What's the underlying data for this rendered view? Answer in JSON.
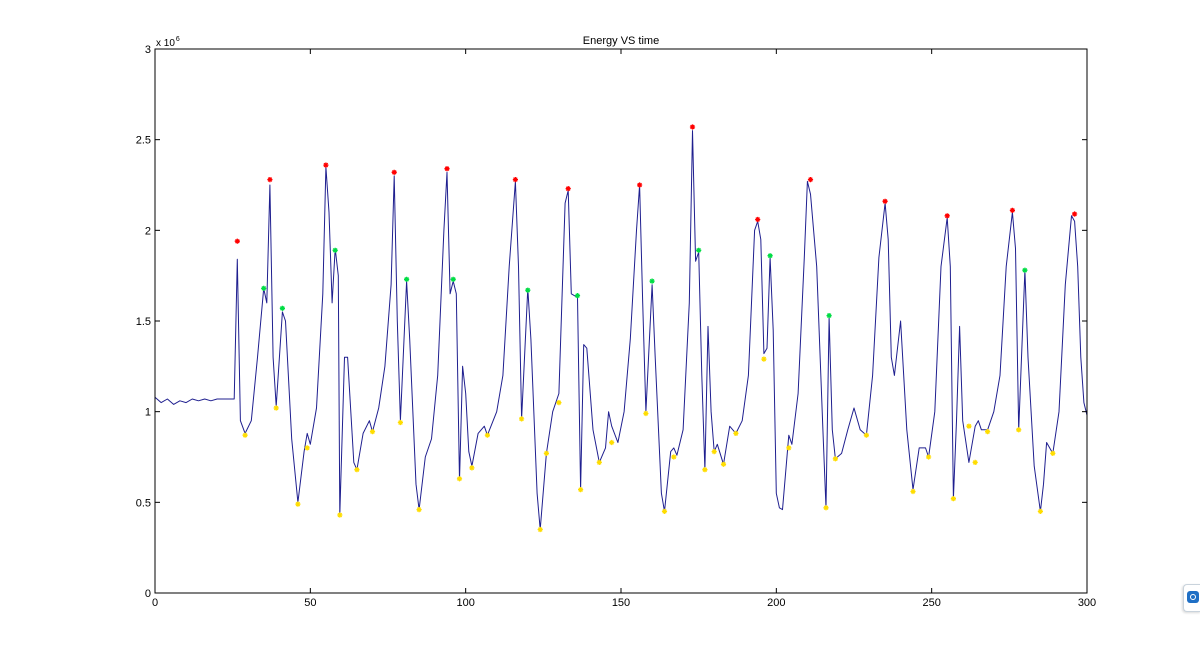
{
  "chart_data": {
    "type": "line",
    "title": "Energy VS time",
    "xlabel": "",
    "ylabel": "",
    "y_multiplier_base": "x 10",
    "y_multiplier_exp": "6",
    "xlim": [
      0,
      300
    ],
    "ylim": [
      0,
      3
    ],
    "x_ticks": [
      0,
      50,
      100,
      150,
      200,
      250,
      300
    ],
    "x_tick_labels": [
      "0",
      "50",
      "100",
      "150",
      "200",
      "250",
      "300"
    ],
    "y_ticks": [
      0,
      0.5,
      1,
      1.5,
      2,
      2.5,
      3
    ],
    "y_tick_labels": [
      "0",
      "0.5",
      "1",
      "1.5",
      "2",
      "2.5",
      "3"
    ],
    "grid": false,
    "legend": "none",
    "series": [
      {
        "role": "energy-signal",
        "color": "#1f1f8f",
        "points": [
          [
            0,
            1.08
          ],
          [
            2,
            1.05
          ],
          [
            4,
            1.07
          ],
          [
            6,
            1.04
          ],
          [
            8,
            1.06
          ],
          [
            10,
            1.05
          ],
          [
            12,
            1.07
          ],
          [
            14,
            1.06
          ],
          [
            16,
            1.07
          ],
          [
            18,
            1.06
          ],
          [
            20,
            1.07
          ],
          [
            22,
            1.07
          ],
          [
            24,
            1.07
          ],
          [
            25.5,
            1.07
          ],
          [
            26.5,
            1.84
          ],
          [
            27.5,
            0.95
          ],
          [
            29,
            0.88
          ],
          [
            31,
            0.95
          ],
          [
            33,
            1.3
          ],
          [
            35,
            1.68
          ],
          [
            36,
            1.6
          ],
          [
            37,
            2.25
          ],
          [
            38,
            1.3
          ],
          [
            39,
            1.03
          ],
          [
            41,
            1.55
          ],
          [
            42,
            1.5
          ],
          [
            44,
            0.85
          ],
          [
            46,
            0.5
          ],
          [
            48,
            0.78
          ],
          [
            49,
            0.88
          ],
          [
            50,
            0.82
          ],
          [
            52,
            1.02
          ],
          [
            54,
            1.65
          ],
          [
            55,
            2.35
          ],
          [
            56,
            2.1
          ],
          [
            57,
            1.6
          ],
          [
            58,
            1.9
          ],
          [
            59,
            1.75
          ],
          [
            59.5,
            0.43
          ],
          [
            61,
            1.3
          ],
          [
            62,
            1.3
          ],
          [
            64,
            0.72
          ],
          [
            65,
            0.68
          ],
          [
            67,
            0.88
          ],
          [
            69,
            0.95
          ],
          [
            70,
            0.89
          ],
          [
            72,
            1.02
          ],
          [
            74,
            1.25
          ],
          [
            76,
            1.7
          ],
          [
            77,
            2.3
          ],
          [
            78,
            1.5
          ],
          [
            79,
            0.95
          ],
          [
            81,
            1.72
          ],
          [
            82,
            1.4
          ],
          [
            84,
            0.6
          ],
          [
            85,
            0.46
          ],
          [
            87,
            0.75
          ],
          [
            89,
            0.85
          ],
          [
            91,
            1.2
          ],
          [
            93,
            2.0
          ],
          [
            94,
            2.32
          ],
          [
            95,
            1.65
          ],
          [
            96,
            1.72
          ],
          [
            97,
            1.65
          ],
          [
            98,
            0.62
          ],
          [
            99,
            1.25
          ],
          [
            100,
            1.1
          ],
          [
            101,
            0.78
          ],
          [
            102,
            0.7
          ],
          [
            104,
            0.88
          ],
          [
            106,
            0.92
          ],
          [
            107,
            0.87
          ],
          [
            110,
            1.0
          ],
          [
            112,
            1.2
          ],
          [
            114,
            1.8
          ],
          [
            116,
            2.27
          ],
          [
            117,
            1.8
          ],
          [
            118,
            0.96
          ],
          [
            120,
            1.68
          ],
          [
            121,
            1.4
          ],
          [
            123,
            0.55
          ],
          [
            124,
            0.35
          ],
          [
            126,
            0.77
          ],
          [
            128,
            1.0
          ],
          [
            130,
            1.1
          ],
          [
            132,
            2.15
          ],
          [
            133,
            2.22
          ],
          [
            134,
            1.65
          ],
          [
            136,
            1.63
          ],
          [
            137,
            0.57
          ],
          [
            138,
            1.37
          ],
          [
            139,
            1.35
          ],
          [
            141,
            0.9
          ],
          [
            143,
            0.72
          ],
          [
            145,
            0.8
          ],
          [
            146,
            1.0
          ],
          [
            147,
            0.92
          ],
          [
            149,
            0.83
          ],
          [
            151,
            1.0
          ],
          [
            153,
            1.4
          ],
          [
            155,
            2.0
          ],
          [
            156,
            2.25
          ],
          [
            157,
            1.6
          ],
          [
            158,
            1.0
          ],
          [
            160,
            1.7
          ],
          [
            161,
            1.3
          ],
          [
            163,
            0.55
          ],
          [
            164,
            0.45
          ],
          [
            166,
            0.78
          ],
          [
            167,
            0.8
          ],
          [
            168,
            0.76
          ],
          [
            170,
            0.9
          ],
          [
            172,
            1.6
          ],
          [
            173,
            2.55
          ],
          [
            174,
            1.83
          ],
          [
            175,
            1.88
          ],
          [
            176,
            1.2
          ],
          [
            177,
            0.68
          ],
          [
            178,
            1.47
          ],
          [
            179,
            1.0
          ],
          [
            180,
            0.78
          ],
          [
            181,
            0.82
          ],
          [
            183,
            0.71
          ],
          [
            185,
            0.92
          ],
          [
            187,
            0.88
          ],
          [
            189,
            0.95
          ],
          [
            191,
            1.2
          ],
          [
            193,
            2.0
          ],
          [
            194,
            2.05
          ],
          [
            195,
            1.95
          ],
          [
            196,
            1.32
          ],
          [
            197,
            1.35
          ],
          [
            198,
            1.85
          ],
          [
            199,
            1.45
          ],
          [
            200,
            0.55
          ],
          [
            201,
            0.47
          ],
          [
            202,
            0.46
          ],
          [
            204,
            0.87
          ],
          [
            205,
            0.82
          ],
          [
            207,
            1.1
          ],
          [
            209,
            1.85
          ],
          [
            210,
            2.27
          ],
          [
            211,
            2.2
          ],
          [
            213,
            1.8
          ],
          [
            215,
            0.9
          ],
          [
            216,
            0.47
          ],
          [
            217,
            1.52
          ],
          [
            218,
            0.9
          ],
          [
            219,
            0.74
          ],
          [
            221,
            0.77
          ],
          [
            223,
            0.9
          ],
          [
            225,
            1.02
          ],
          [
            227,
            0.9
          ],
          [
            229,
            0.87
          ],
          [
            231,
            1.2
          ],
          [
            233,
            1.85
          ],
          [
            235,
            2.15
          ],
          [
            236,
            1.95
          ],
          [
            237,
            1.3
          ],
          [
            238,
            1.2
          ],
          [
            240,
            1.5
          ],
          [
            242,
            0.9
          ],
          [
            244,
            0.57
          ],
          [
            246,
            0.8
          ],
          [
            248,
            0.8
          ],
          [
            249,
            0.75
          ],
          [
            251,
            1.0
          ],
          [
            253,
            1.8
          ],
          [
            255,
            2.07
          ],
          [
            256,
            1.8
          ],
          [
            257,
            0.52
          ],
          [
            258,
            0.95
          ],
          [
            259,
            1.47
          ],
          [
            260,
            0.95
          ],
          [
            262,
            0.72
          ],
          [
            264,
            0.92
          ],
          [
            265,
            0.95
          ],
          [
            266,
            0.9
          ],
          [
            268,
            0.9
          ],
          [
            270,
            1.0
          ],
          [
            272,
            1.2
          ],
          [
            274,
            1.8
          ],
          [
            276,
            2.1
          ],
          [
            277,
            1.9
          ],
          [
            278,
            0.9
          ],
          [
            280,
            1.78
          ],
          [
            281,
            1.3
          ],
          [
            283,
            0.7
          ],
          [
            285,
            0.45
          ],
          [
            286,
            0.6
          ],
          [
            287,
            0.83
          ],
          [
            289,
            0.77
          ],
          [
            291,
            1.0
          ],
          [
            293,
            1.7
          ],
          [
            295,
            2.08
          ],
          [
            296,
            2.05
          ],
          [
            297,
            1.8
          ],
          [
            298,
            1.3
          ],
          [
            299,
            1.05
          ],
          [
            300,
            0.98
          ]
        ]
      },
      {
        "role": "red-star-markers",
        "color": "#ff0000",
        "points": [
          [
            26.5,
            1.94
          ],
          [
            37,
            2.28
          ],
          [
            55,
            2.36
          ],
          [
            77,
            2.32
          ],
          [
            94,
            2.34
          ],
          [
            116,
            2.28
          ],
          [
            133,
            2.23
          ],
          [
            156,
            2.25
          ],
          [
            173,
            2.57
          ],
          [
            194,
            2.06
          ],
          [
            211,
            2.28
          ],
          [
            235,
            2.16
          ],
          [
            255,
            2.08
          ],
          [
            276,
            2.11
          ],
          [
            296,
            2.09
          ]
        ]
      },
      {
        "role": "green-star-markers",
        "color": "#00dd44",
        "points": [
          [
            35,
            1.68
          ],
          [
            41,
            1.57
          ],
          [
            58,
            1.89
          ],
          [
            81,
            1.73
          ],
          [
            96,
            1.73
          ],
          [
            120,
            1.67
          ],
          [
            136,
            1.64
          ],
          [
            160,
            1.72
          ],
          [
            175,
            1.89
          ],
          [
            198,
            1.86
          ],
          [
            217,
            1.53
          ],
          [
            280,
            1.78
          ]
        ]
      },
      {
        "role": "yellow-star-markers",
        "color": "#ffdd00",
        "points": [
          [
            29,
            0.87
          ],
          [
            39,
            1.02
          ],
          [
            46,
            0.49
          ],
          [
            49,
            0.8
          ],
          [
            59.5,
            0.43
          ],
          [
            65,
            0.68
          ],
          [
            70,
            0.89
          ],
          [
            79,
            0.94
          ],
          [
            85,
            0.46
          ],
          [
            98,
            0.63
          ],
          [
            102,
            0.69
          ],
          [
            107,
            0.87
          ],
          [
            118,
            0.96
          ],
          [
            124,
            0.35
          ],
          [
            126,
            0.77
          ],
          [
            130,
            1.05
          ],
          [
            137,
            0.57
          ],
          [
            143,
            0.72
          ],
          [
            147,
            0.83
          ],
          [
            158,
            0.99
          ],
          [
            164,
            0.45
          ],
          [
            167,
            0.75
          ],
          [
            177,
            0.68
          ],
          [
            180,
            0.78
          ],
          [
            183,
            0.71
          ],
          [
            187,
            0.88
          ],
          [
            196,
            1.29
          ],
          [
            204,
            0.8
          ],
          [
            216,
            0.47
          ],
          [
            219,
            0.74
          ],
          [
            229,
            0.87
          ],
          [
            244,
            0.56
          ],
          [
            249,
            0.75
          ],
          [
            257,
            0.52
          ],
          [
            262,
            0.92
          ],
          [
            264,
            0.72
          ],
          [
            268,
            0.89
          ],
          [
            278,
            0.9
          ],
          [
            285,
            0.45
          ],
          [
            289,
            0.77
          ]
        ]
      }
    ]
  },
  "widget": {
    "icon": "teamviewer-icon"
  }
}
